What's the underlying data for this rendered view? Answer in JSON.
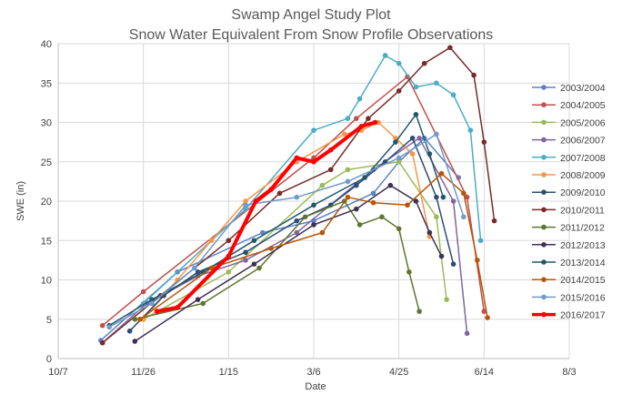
{
  "chart_data": {
    "type": "line",
    "title": [
      "Swamp Angel Study Plot",
      "Snow Water Equivalent From Snow Profile Observations"
    ],
    "xlabel": "Date",
    "ylabel": "SWE (in)",
    "x_units": "days after Oct 7",
    "xlim": [
      0,
      300
    ],
    "ylim": [
      0,
      40
    ],
    "x_ticks": [
      {
        "value": 0,
        "label": "10/7"
      },
      {
        "value": 50,
        "label": "11/26"
      },
      {
        "value": 100,
        "label": "1/15"
      },
      {
        "value": 150,
        "label": "3/6"
      },
      {
        "value": 200,
        "label": "4/25"
      },
      {
        "value": 250,
        "label": "6/14"
      },
      {
        "value": 300,
        "label": "8/3"
      }
    ],
    "y_ticks": [
      0,
      5,
      10,
      15,
      20,
      25,
      30,
      35,
      40
    ],
    "grid": true,
    "legend_position": "right",
    "series": [
      {
        "name": "2003/2004",
        "color": "#5b83c4",
        "width": 1.5,
        "x": [
          25,
          70,
          120,
          150,
          185,
          200,
          215,
          235
        ],
        "y": [
          2.3,
          11,
          16,
          17.5,
          21,
          25,
          28,
          23
        ]
      },
      {
        "name": "2004/2005",
        "color": "#c0504d",
        "width": 1.5,
        "x": [
          26,
          50,
          150,
          175,
          205,
          240,
          250
        ],
        "y": [
          4.2,
          8.5,
          25.5,
          30.5,
          35.8,
          20.5,
          6
        ]
      },
      {
        "name": "2005/2006",
        "color": "#9bbb59",
        "width": 1.5,
        "x": [
          50,
          100,
          155,
          170,
          200,
          222,
          228
        ],
        "y": [
          5,
          11,
          22,
          24,
          25,
          18,
          7.5
        ]
      },
      {
        "name": "2006/2007",
        "color": "#8064a2",
        "width": 1.5,
        "x": [
          26,
          52,
          82,
          110,
          140,
          185,
          212,
          232,
          240
        ],
        "y": [
          2,
          7,
          10.5,
          12.5,
          16,
          24,
          28,
          20,
          3.2
        ]
      },
      {
        "name": "2007/2008",
        "color": "#4bacc6",
        "width": 1.5,
        "x": [
          50,
          110,
          150,
          170,
          177,
          192,
          200,
          210,
          222,
          232,
          242,
          248
        ],
        "y": [
          7,
          19,
          29,
          30.5,
          33,
          38.5,
          37.5,
          34.5,
          35,
          33.5,
          29,
          15
        ]
      },
      {
        "name": "2008/2009",
        "color": "#f79646",
        "width": 1.5,
        "x": [
          50,
          70,
          90,
          110,
          140,
          168,
          178,
          188,
          198,
          208,
          218
        ],
        "y": [
          5,
          10,
          15,
          20,
          25,
          28.5,
          29,
          30,
          28,
          26,
          15.5
        ]
      },
      {
        "name": "2009/2010",
        "color": "#2c4d75",
        "width": 1.5,
        "x": [
          42,
          62,
          82,
          110,
          140,
          160,
          175,
          192,
          208,
          222,
          232
        ],
        "y": [
          3.5,
          8,
          11,
          13.5,
          17.5,
          19.5,
          22,
          25,
          28,
          20.5,
          12
        ]
      },
      {
        "name": "2010/2011",
        "color": "#772c2a",
        "width": 1.5,
        "x": [
          26,
          60,
          100,
          130,
          160,
          182,
          200,
          215,
          230,
          244,
          250,
          256
        ],
        "y": [
          2,
          8,
          15,
          21,
          24,
          30.5,
          34,
          37.5,
          39.5,
          36,
          27.5,
          17.5
        ]
      },
      {
        "name": "2011/2012",
        "color": "#5f7530",
        "width": 1.5,
        "x": [
          45,
          85,
          118,
          145,
          168,
          177,
          190,
          200,
          206,
          212
        ],
        "y": [
          5,
          7,
          11.5,
          18,
          20,
          17,
          18,
          16.5,
          11,
          6
        ]
      },
      {
        "name": "2012/2013",
        "color": "#403152",
        "width": 1.5,
        "x": [
          45,
          82,
          115,
          150,
          175,
          195,
          210,
          218,
          225
        ],
        "y": [
          2.2,
          7.5,
          12,
          17,
          19,
          22,
          20,
          16,
          13
        ]
      },
      {
        "name": "2013/2014",
        "color": "#215968",
        "width": 1.5,
        "x": [
          30,
          55,
          85,
          115,
          150,
          180,
          198,
          210,
          218,
          226
        ],
        "y": [
          4.2,
          7.5,
          11,
          15,
          19.5,
          23,
          27.5,
          31,
          26,
          20.5
        ]
      },
      {
        "name": "2014/2015",
        "color": "#b65708",
        "width": 1.5,
        "x": [
          48,
          90,
          125,
          155,
          170,
          185,
          205,
          225,
          238,
          246,
          252
        ],
        "y": [
          5,
          11.5,
          14,
          16,
          20.5,
          19.8,
          19.5,
          23.5,
          21,
          12.5,
          5.2
        ]
      },
      {
        "name": "2015/2016",
        "color": "#729aca",
        "width": 1.5,
        "x": [
          30,
          55,
          80,
          110,
          140,
          170,
          200,
          222,
          238
        ],
        "y": [
          4,
          7,
          11.5,
          19.5,
          20.5,
          22.5,
          25.5,
          28.5,
          18
        ]
      },
      {
        "name": "2016/2017",
        "color": "#ff0000",
        "width": 4,
        "x": [
          58,
          70,
          100,
          116,
          125,
          140,
          150,
          160,
          178,
          186
        ],
        "y": [
          6,
          6.5,
          13,
          20,
          21.5,
          25.5,
          25,
          26.5,
          29.5,
          30
        ]
      }
    ]
  }
}
